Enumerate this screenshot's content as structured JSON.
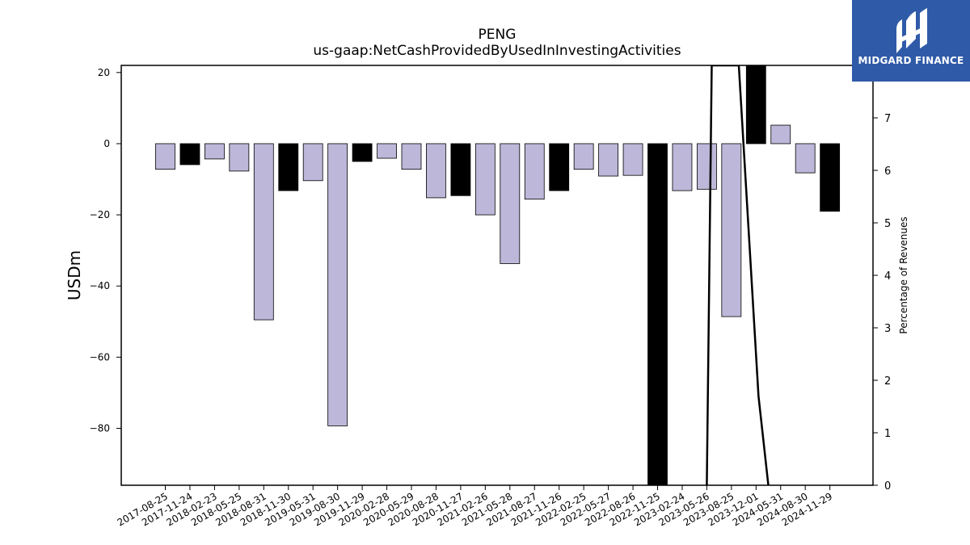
{
  "brand": {
    "name": "MIDGARD FINANCE",
    "color": "#2f5aa8"
  },
  "chart_data": {
    "type": "bar",
    "title": "PENG",
    "subtitle": "us-gaap:NetCashProvidedByUsedInInvestingActivities",
    "ylabel": "USDm",
    "y2label": "Percentage of Revenues",
    "xlabel": "",
    "ylim": [
      -96,
      22
    ],
    "y2lim": [
      0,
      8.0
    ],
    "yticks": [
      20,
      0,
      -20,
      -40,
      -60,
      -80
    ],
    "y2ticks": [
      0,
      1,
      2,
      3,
      4,
      5,
      6,
      7
    ],
    "grid": false,
    "categories": [
      "2017-08-25",
      "2017-11-24",
      "2018-02-23",
      "2018-05-25",
      "2018-08-31",
      "2018-11-30",
      "2019-05-31",
      "2019-08-30",
      "2019-11-29",
      "2020-02-28",
      "2020-05-29",
      "2020-08-28",
      "2020-11-27",
      "2021-02-26",
      "2021-05-28",
      "2021-08-27",
      "2021-11-26",
      "2022-02-25",
      "2022-05-27",
      "2022-08-26",
      "2022-11-25",
      "2023-02-24",
      "2023-05-26",
      "2023-08-25",
      "2023-12-01",
      "2024-05-31",
      "2024-08-30",
      "2024-11-29"
    ],
    "values": [
      -7.2,
      -5.9,
      -4.3,
      -7.7,
      -49.5,
      -13.2,
      -10.4,
      -79.3,
      -5.0,
      -4.1,
      -7.2,
      -15.2,
      -14.6,
      -20.0,
      -33.7,
      -15.6,
      -13.2,
      -7.2,
      -9.1,
      -8.9,
      -96.0,
      -13.2,
      -12.8,
      -48.6,
      22.0,
      5.2,
      -8.2,
      -19.0
    ],
    "highlight": [
      false,
      true,
      false,
      false,
      false,
      true,
      false,
      false,
      true,
      false,
      false,
      false,
      true,
      false,
      false,
      false,
      true,
      false,
      false,
      false,
      true,
      false,
      false,
      false,
      true,
      false,
      false,
      true
    ],
    "bar_colors": {
      "default": "#bdb8d9",
      "highlight": "#000000",
      "edge": "#000000"
    },
    "line_series": {
      "x_index": [
        22.0,
        22.2,
        23.3,
        24.1,
        24.5
      ],
      "values": [
        0.0,
        8.0,
        8.0,
        1.7,
        0.0
      ]
    }
  }
}
